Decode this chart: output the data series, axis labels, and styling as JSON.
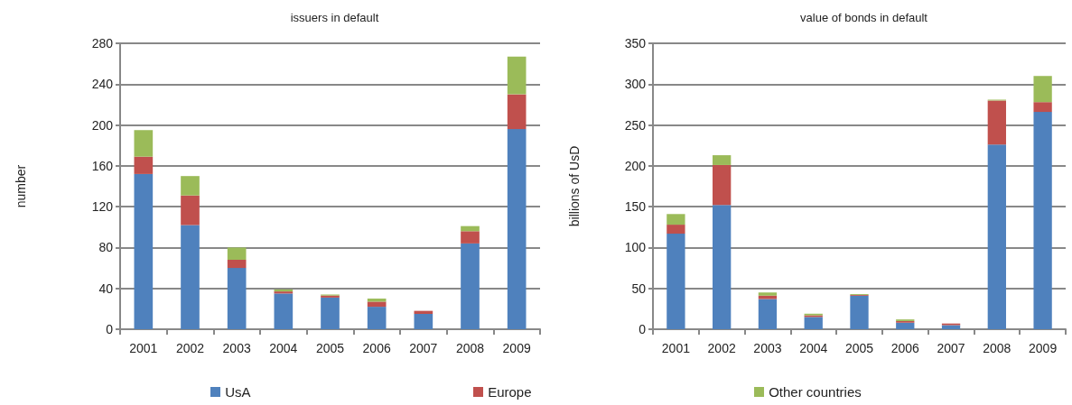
{
  "chart_data": [
    {
      "type": "bar",
      "title": "issuers in default",
      "ylabel": "number",
      "stacked": true,
      "categories": [
        "2001",
        "2002",
        "2003",
        "2004",
        "2005",
        "2006",
        "2007",
        "2008",
        "2009"
      ],
      "ylim": [
        0,
        280
      ],
      "yticks": [
        0,
        40,
        80,
        120,
        160,
        200,
        240,
        280
      ],
      "grid": "y",
      "legend": "bottom",
      "series": [
        {
          "name": "UsA",
          "color": "#4f81bd",
          "values": [
            152,
            102,
            60,
            35,
            31,
            22,
            15,
            84,
            196
          ]
        },
        {
          "name": "Europe",
          "color": "#c0504d",
          "values": [
            17,
            29,
            8,
            2,
            2,
            5,
            3,
            12,
            34
          ]
        },
        {
          "name": "Other countries",
          "color": "#9bbb59",
          "values": [
            26,
            19,
            12,
            2,
            1,
            3,
            0,
            5,
            37
          ]
        }
      ]
    },
    {
      "type": "bar",
      "title": "value of bonds in default",
      "ylabel": "billions of UsD",
      "stacked": true,
      "categories": [
        "2001",
        "2002",
        "2003",
        "2004",
        "2005",
        "2006",
        "2007",
        "2008",
        "2009"
      ],
      "ylim": [
        0,
        350
      ],
      "yticks": [
        0,
        50,
        100,
        150,
        200,
        250,
        300,
        350
      ],
      "grid": "y",
      "legend": "bottom",
      "series": [
        {
          "name": "UsA",
          "color": "#4f81bd",
          "values": [
            117,
            152,
            37,
            15,
            41,
            8,
            5,
            226,
            266
          ]
        },
        {
          "name": "Europe",
          "color": "#c0504d",
          "values": [
            11,
            49,
            4,
            2,
            1,
            2,
            2,
            54,
            12
          ]
        },
        {
          "name": "Other countries",
          "color": "#9bbb59",
          "values": [
            13,
            12,
            4,
            2,
            1,
            2,
            0,
            1,
            32
          ]
        }
      ]
    }
  ]
}
